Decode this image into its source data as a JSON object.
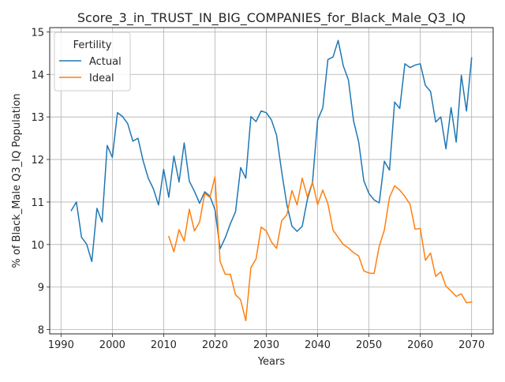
{
  "chart_data": {
    "type": "line",
    "title": "Score_3_in_TRUST_IN_BIG_COMPANIES_for_Black_Male_Q3_IQ",
    "xlabel": "Years",
    "ylabel": "% of Black_Male Q3_IQ Population",
    "xlim": [
      1987.8,
      2074.2
    ],
    "ylim": [
      7.9,
      15.1
    ],
    "xticks": [
      1990,
      2000,
      2010,
      2020,
      2030,
      2040,
      2050,
      2060,
      2070
    ],
    "yticks": [
      8,
      9,
      10,
      11,
      12,
      13,
      14,
      15
    ],
    "grid": true,
    "legend": {
      "title": "Fertility",
      "position": "top-left"
    },
    "series": [
      {
        "name": "Actual",
        "color": "#1f77b4",
        "x": [
          1992,
          1993,
          1994,
          1995,
          1996,
          1997,
          1998,
          1999,
          2000,
          2001,
          2002,
          2003,
          2004,
          2005,
          2006,
          2007,
          2008,
          2009,
          2010,
          2011,
          2012,
          2013,
          2014,
          2015,
          2016,
          2017,
          2018,
          2019,
          2020,
          2021,
          2022,
          2023,
          2024,
          2025,
          2026,
          2027,
          2028,
          2029,
          2030,
          2031,
          2032,
          2033,
          2034,
          2035,
          2036,
          2037,
          2038,
          2039,
          2040,
          2041,
          2042,
          2043,
          2044,
          2045,
          2046,
          2047,
          2048,
          2049,
          2050,
          2051,
          2052,
          2053,
          2054,
          2055,
          2056,
          2057,
          2058,
          2059,
          2060,
          2061,
          2062,
          2063,
          2064,
          2065,
          2066,
          2067,
          2068,
          2069,
          2070
        ],
        "values": [
          10.8,
          11.0,
          10.17,
          10.01,
          9.6,
          10.85,
          10.53,
          12.33,
          12.05,
          13.1,
          13.01,
          12.84,
          12.43,
          12.5,
          11.97,
          11.56,
          11.31,
          10.93,
          11.77,
          11.11,
          12.08,
          11.47,
          12.39,
          11.49,
          11.25,
          10.97,
          11.24,
          11.14,
          10.82,
          9.9,
          10.16,
          10.49,
          10.77,
          11.81,
          11.56,
          13.01,
          12.89,
          13.14,
          13.1,
          12.93,
          12.57,
          11.71,
          10.94,
          10.43,
          10.31,
          10.43,
          11.06,
          11.46,
          12.93,
          13.21,
          14.35,
          14.41,
          14.8,
          14.2,
          13.87,
          12.91,
          12.41,
          11.5,
          11.2,
          11.05,
          10.98,
          11.96,
          11.75,
          13.35,
          13.2,
          14.25,
          14.16,
          14.22,
          14.25,
          13.74,
          13.6,
          12.88,
          13.0,
          12.25,
          13.22,
          12.41,
          13.98,
          13.14,
          14.39
        ]
      },
      {
        "name": "Ideal",
        "color": "#ff7f0e",
        "x": [
          2011,
          2012,
          2013,
          2014,
          2015,
          2016,
          2017,
          2018,
          2019,
          2020,
          2021,
          2022,
          2023,
          2024,
          2025,
          2026,
          2027,
          2028,
          2029,
          2030,
          2031,
          2032,
          2033,
          2034,
          2035,
          2036,
          2037,
          2038,
          2039,
          2040,
          2041,
          2042,
          2043,
          2044,
          2045,
          2046,
          2047,
          2048,
          2049,
          2050,
          2051,
          2052,
          2053,
          2054,
          2055,
          2056,
          2057,
          2058,
          2059,
          2060,
          2061,
          2062,
          2063,
          2064,
          2065,
          2066,
          2067,
          2068,
          2069,
          2070
        ],
        "values": [
          10.19,
          9.83,
          10.35,
          10.08,
          10.83,
          10.32,
          10.53,
          11.2,
          11.11,
          11.59,
          9.6,
          9.3,
          9.3,
          8.82,
          8.7,
          8.21,
          9.46,
          9.66,
          10.41,
          10.32,
          10.06,
          9.91,
          10.56,
          10.7,
          11.27,
          10.93,
          11.56,
          11.12,
          11.47,
          10.94,
          11.28,
          10.96,
          10.34,
          10.17,
          10.0,
          9.92,
          9.81,
          9.73,
          9.38,
          9.33,
          9.32,
          9.96,
          10.34,
          11.11,
          11.38,
          11.28,
          11.13,
          10.95,
          10.36,
          10.38,
          9.63,
          9.8,
          9.25,
          9.36,
          9.02,
          8.91,
          8.78,
          8.84,
          8.63,
          8.65
        ]
      }
    ]
  }
}
